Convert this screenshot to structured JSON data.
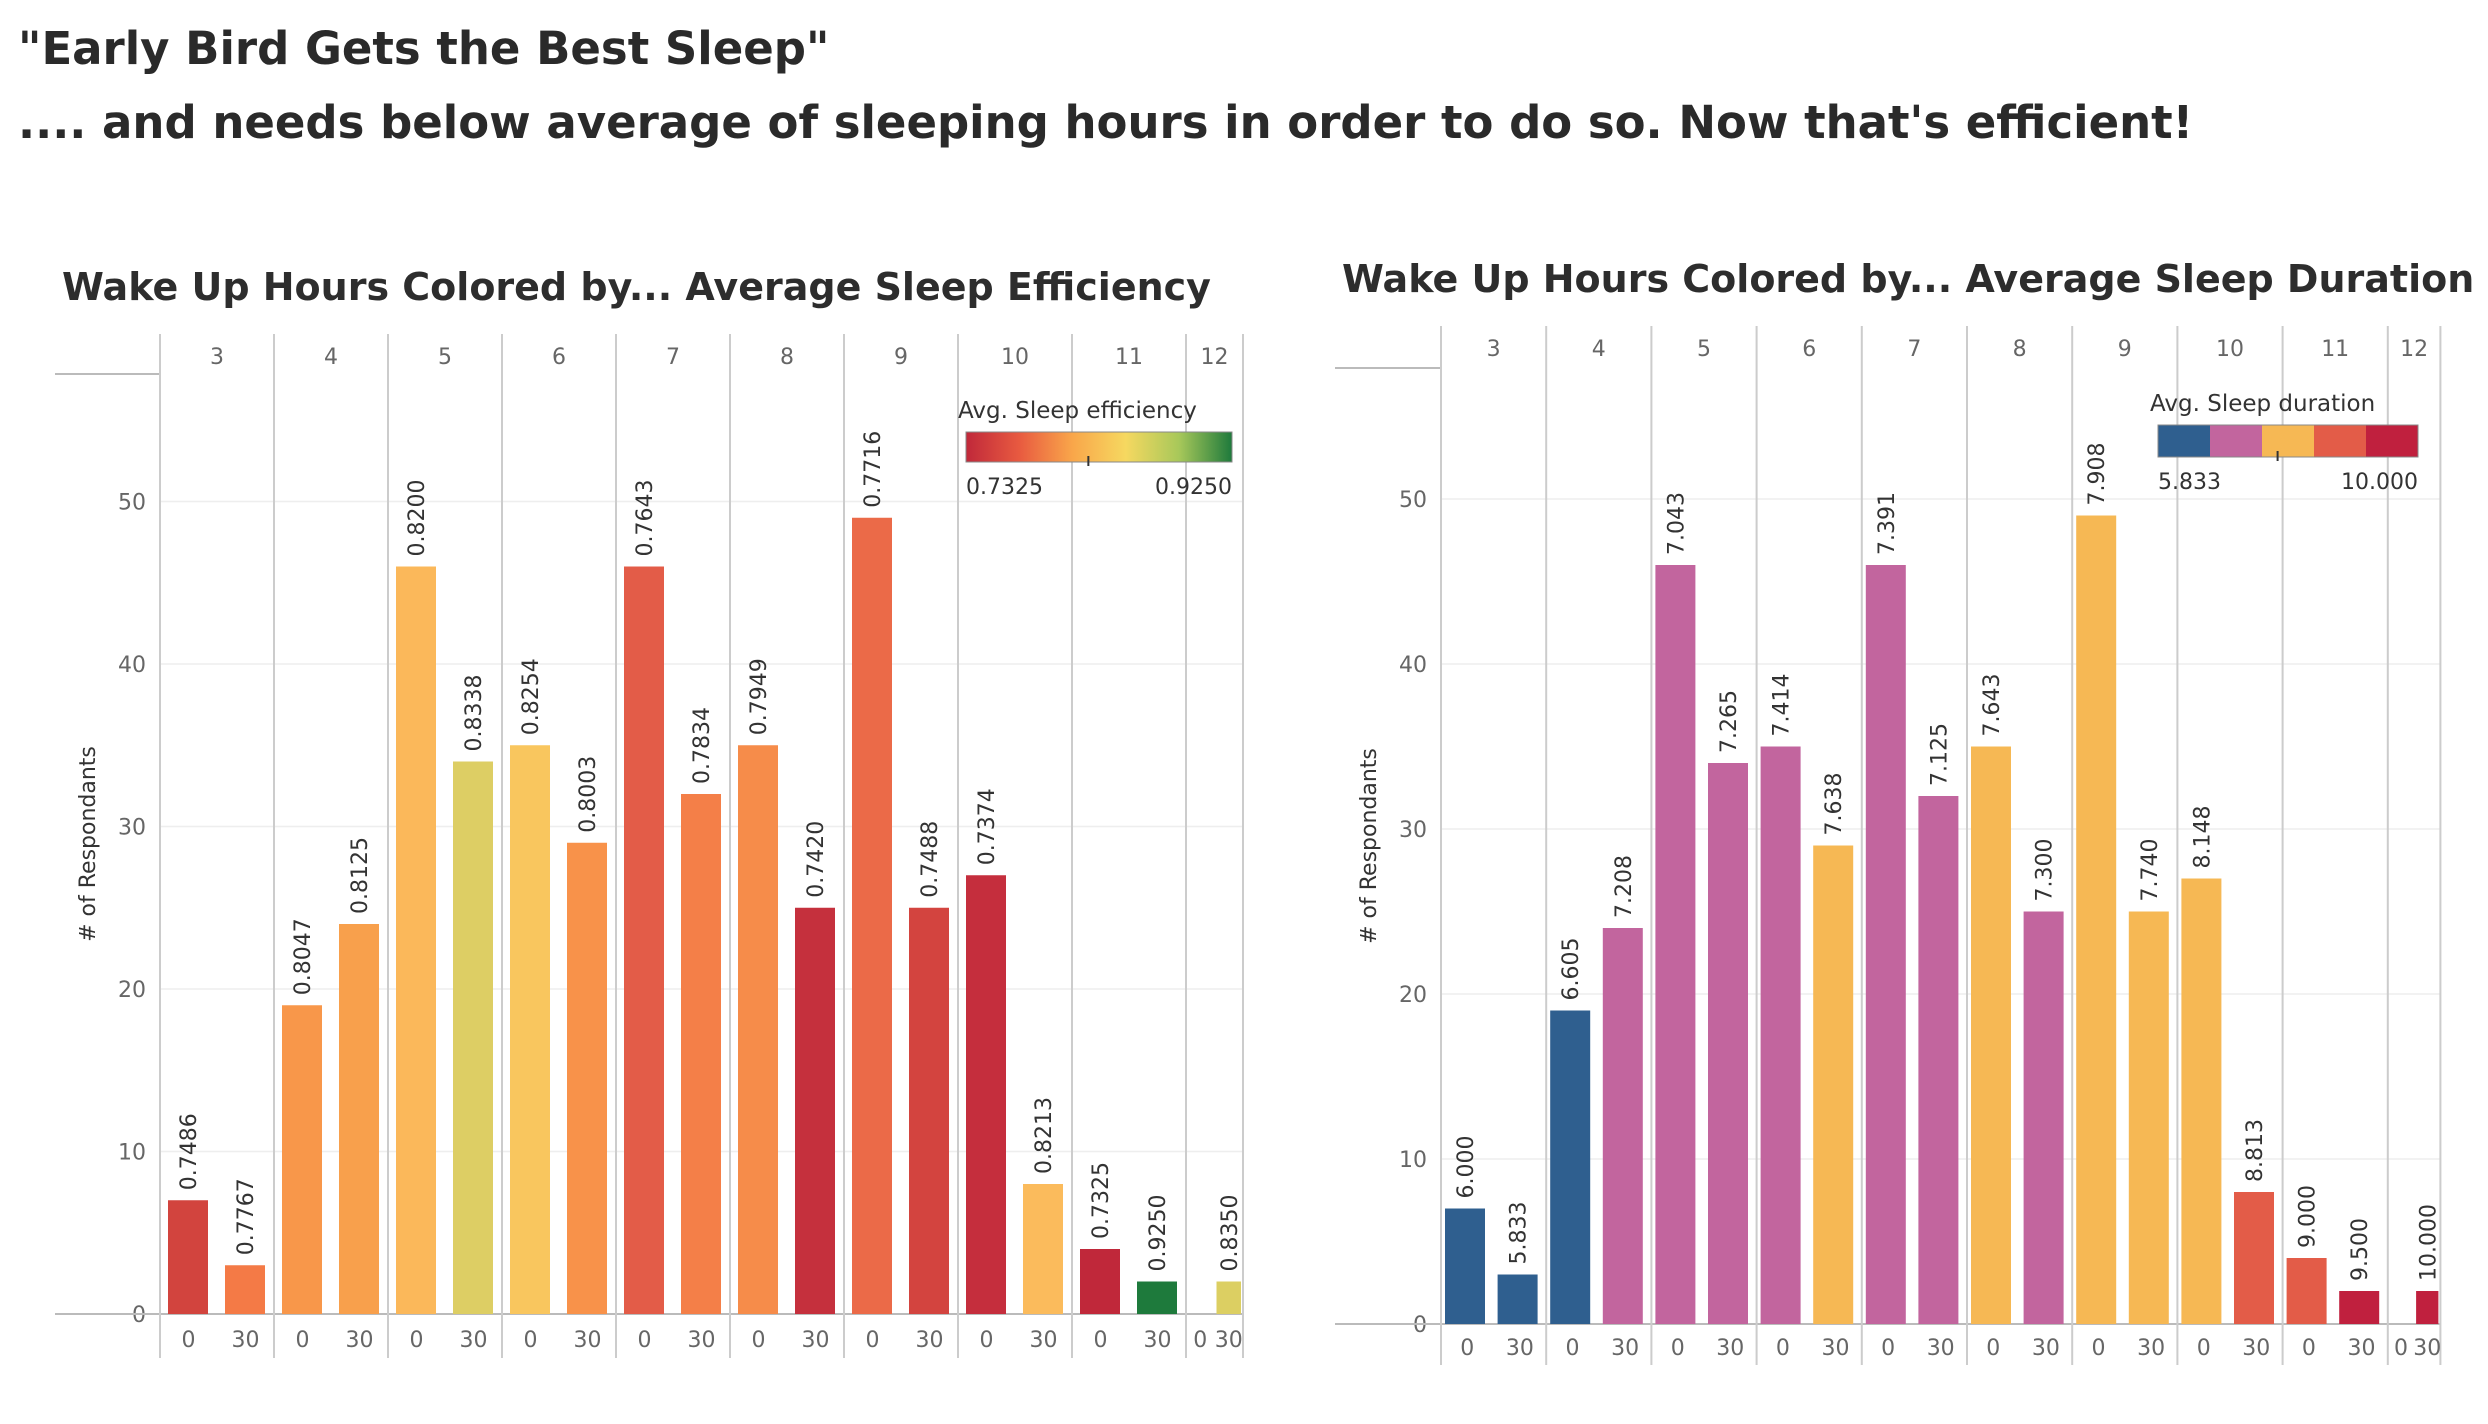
{
  "headline": {
    "title": "\"Early Bird Gets the Best Sleep\"",
    "subtitle": ".... and needs below average of sleeping hours in order to do so. Now that's efficient!"
  },
  "chart_data": [
    {
      "type": "bar",
      "title": "Wake Up Hours Colored by... Average  Sleep Efficiency",
      "ylabel": "# of Respondants",
      "hours": [
        "3",
        "4",
        "5",
        "6",
        "7",
        "8",
        "9",
        "10",
        "11",
        "12"
      ],
      "minutes": [
        "0",
        "30"
      ],
      "y_ticks": [
        0,
        10,
        20,
        30,
        40,
        50
      ],
      "ylim": [
        0,
        58
      ],
      "grid": true,
      "legend": {
        "title": "Avg. Sleep efficiency",
        "min_label": "0.7325",
        "max_label": "0.9250",
        "placement": "top-right",
        "gradient": [
          "#c0283a",
          "#e85a40",
          "#f9a64a",
          "#f6d860",
          "#a8c85a",
          "#1e7a3c"
        ]
      },
      "bars": [
        {
          "hour": "3",
          "minute": "0",
          "count": 7,
          "label": "0.7486",
          "color": "#d2443e"
        },
        {
          "hour": "3",
          "minute": "30",
          "count": 3,
          "label": "0.7767",
          "color": "#f47a46"
        },
        {
          "hour": "4",
          "minute": "0",
          "count": 19,
          "label": "0.8047",
          "color": "#f8974a"
        },
        {
          "hour": "4",
          "minute": "30",
          "count": 24,
          "label": "0.8125",
          "color": "#f8a04c"
        },
        {
          "hour": "5",
          "minute": "0",
          "count": 46,
          "label": "0.8200",
          "color": "#fbb85a"
        },
        {
          "hour": "5",
          "minute": "30",
          "count": 34,
          "label": "0.8338",
          "color": "#ddce64"
        },
        {
          "hour": "6",
          "minute": "0",
          "count": 35,
          "label": "0.8254",
          "color": "#f9c65e"
        },
        {
          "hour": "6",
          "minute": "30",
          "count": 29,
          "label": "0.8003",
          "color": "#f8924a"
        },
        {
          "hour": "7",
          "minute": "0",
          "count": 46,
          "label": "0.7643",
          "color": "#e35c48"
        },
        {
          "hour": "7",
          "minute": "30",
          "count": 32,
          "label": "0.7834",
          "color": "#f47f48"
        },
        {
          "hour": "8",
          "minute": "0",
          "count": 35,
          "label": "0.7949",
          "color": "#f68c4a"
        },
        {
          "hour": "8",
          "minute": "30",
          "count": 25,
          "label": "0.7420",
          "color": "#c5303d"
        },
        {
          "hour": "9",
          "minute": "0",
          "count": 49,
          "label": "0.7716",
          "color": "#eb6a48"
        },
        {
          "hour": "9",
          "minute": "30",
          "count": 25,
          "label": "0.7488",
          "color": "#d3443f"
        },
        {
          "hour": "10",
          "minute": "0",
          "count": 27,
          "label": "0.7374",
          "color": "#c52e3d"
        },
        {
          "hour": "10",
          "minute": "30",
          "count": 8,
          "label": "0.8213",
          "color": "#fbbb5c"
        },
        {
          "hour": "11",
          "minute": "0",
          "count": 4,
          "label": "0.7325",
          "color": "#c0283a"
        },
        {
          "hour": "11",
          "minute": "30",
          "count": 2,
          "label": "0.9250",
          "color": "#1e7a3c"
        },
        {
          "hour": "12",
          "minute": "30",
          "count": 2,
          "label": "0.8350",
          "color": "#dccf62"
        }
      ]
    },
    {
      "type": "bar",
      "title": "Wake Up Hours Colored by... Average  Sleep Duration",
      "ylabel": "# of Respondants",
      "hours": [
        "3",
        "4",
        "5",
        "6",
        "7",
        "8",
        "9",
        "10",
        "11",
        "12"
      ],
      "minutes": [
        "0",
        "30"
      ],
      "y_ticks": [
        0,
        10,
        20,
        30,
        40,
        50
      ],
      "ylim": [
        0,
        58
      ],
      "grid": true,
      "legend": {
        "title": "Avg. Sleep duration",
        "min_label": "5.833",
        "max_label": "10.000",
        "placement": "top-right",
        "stepped": [
          "#2f5f8f",
          "#c2659e",
          "#f6b854",
          "#e35c48",
          "#c0203e"
        ]
      },
      "bars": [
        {
          "hour": "3",
          "minute": "0",
          "count": 7,
          "label": "6.000",
          "color": "#2f5f8f"
        },
        {
          "hour": "3",
          "minute": "30",
          "count": 3,
          "label": "5.833",
          "color": "#2f5f8f"
        },
        {
          "hour": "4",
          "minute": "0",
          "count": 19,
          "label": "6.605",
          "color": "#2f5f8f"
        },
        {
          "hour": "4",
          "minute": "30",
          "count": 24,
          "label": "7.208",
          "color": "#c2659e"
        },
        {
          "hour": "5",
          "minute": "0",
          "count": 46,
          "label": "7.043",
          "color": "#c2659e"
        },
        {
          "hour": "5",
          "minute": "30",
          "count": 34,
          "label": "7.265",
          "color": "#c2659e"
        },
        {
          "hour": "6",
          "minute": "0",
          "count": 35,
          "label": "7.414",
          "color": "#c2659e"
        },
        {
          "hour": "6",
          "minute": "30",
          "count": 29,
          "label": "7.638",
          "color": "#f6b854"
        },
        {
          "hour": "7",
          "minute": "0",
          "count": 46,
          "label": "7.391",
          "color": "#c2659e"
        },
        {
          "hour": "7",
          "minute": "30",
          "count": 32,
          "label": "7.125",
          "color": "#c2659e"
        },
        {
          "hour": "8",
          "minute": "0",
          "count": 35,
          "label": "7.643",
          "color": "#f6b854"
        },
        {
          "hour": "8",
          "minute": "30",
          "count": 25,
          "label": "7.300",
          "color": "#c2659e"
        },
        {
          "hour": "9",
          "minute": "0",
          "count": 49,
          "label": "7.908",
          "color": "#f6b854"
        },
        {
          "hour": "9",
          "minute": "30",
          "count": 25,
          "label": "7.740",
          "color": "#f6b854"
        },
        {
          "hour": "10",
          "minute": "0",
          "count": 27,
          "label": "8.148",
          "color": "#f6b854"
        },
        {
          "hour": "10",
          "minute": "30",
          "count": 8,
          "label": "8.813",
          "color": "#e35c48"
        },
        {
          "hour": "11",
          "minute": "0",
          "count": 4,
          "label": "9.000",
          "color": "#e35c48"
        },
        {
          "hour": "11",
          "minute": "30",
          "count": 2,
          "label": "9.500",
          "color": "#c0203e"
        },
        {
          "hour": "12",
          "minute": "30",
          "count": 2,
          "label": "10.000",
          "color": "#c0203e"
        }
      ]
    }
  ]
}
